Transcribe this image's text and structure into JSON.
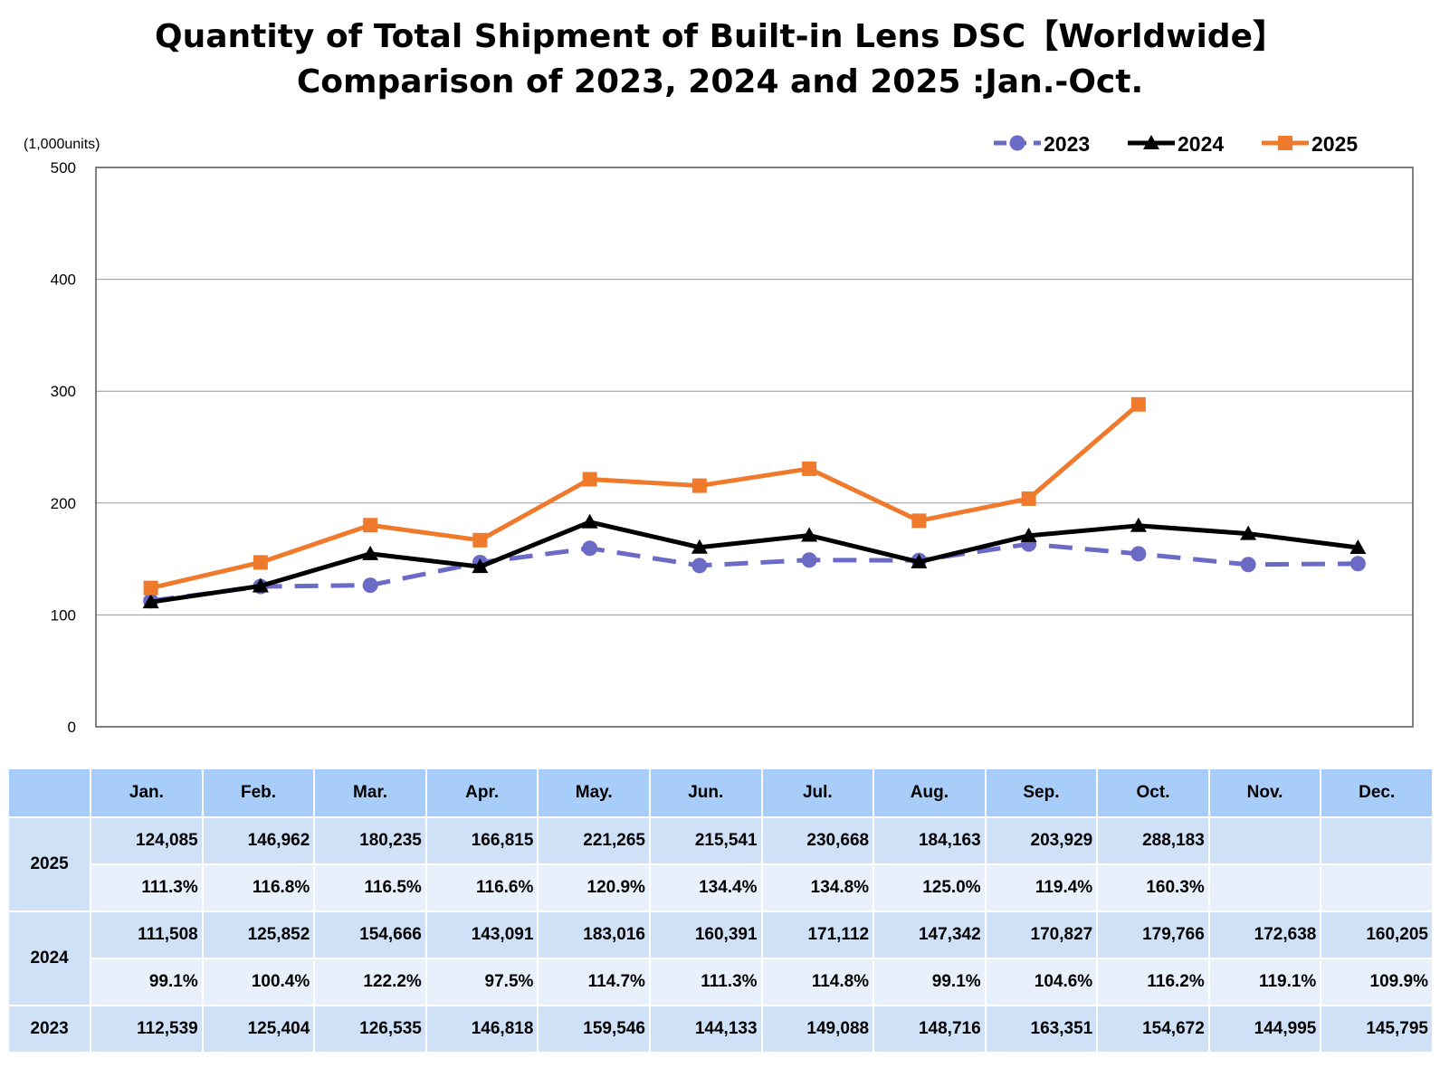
{
  "title_lines": [
    "Quantity of Total Shipment of Built-in Lens DSC【Worldwide】",
    "Comparison of 2023, 2024 and 2025 :Jan.-Oct."
  ],
  "chart_data": {
    "type": "line",
    "unit_label": "(1,000units)",
    "categories": [
      "Jan.",
      "Feb.",
      "Mar.",
      "Apr.",
      "May.",
      "Jun.",
      "Jul.",
      "Aug.",
      "Sep.",
      "Oct.",
      "Nov.",
      "Dec."
    ],
    "ylim": [
      0,
      500
    ],
    "yticks": [
      0,
      100,
      200,
      300,
      400,
      500
    ],
    "grid": true,
    "legend": "top-right",
    "series": [
      {
        "name": "2023",
        "color": "#6b6bc6",
        "marker": "circle",
        "dashed": true,
        "values": [
          112.539,
          125.404,
          126.535,
          146.818,
          159.546,
          144.133,
          149.088,
          148.716,
          163.351,
          154.672,
          144.995,
          145.795
        ]
      },
      {
        "name": "2024",
        "color": "#000000",
        "marker": "triangle",
        "dashed": false,
        "values": [
          111.508,
          125.852,
          154.666,
          143.091,
          183.016,
          160.391,
          171.112,
          147.342,
          170.827,
          179.766,
          172.638,
          160.205
        ]
      },
      {
        "name": "2025",
        "color": "#f07a2c",
        "marker": "square",
        "dashed": false,
        "values": [
          124.085,
          146.962,
          180.235,
          166.815,
          221.265,
          215.541,
          230.668,
          184.163,
          203.929,
          288.183,
          null,
          null
        ]
      }
    ]
  },
  "table": {
    "headers": [
      "Jan.",
      "Feb.",
      "Mar.",
      "Apr.",
      "May.",
      "Jun.",
      "Jul.",
      "Aug.",
      "Sep.",
      "Oct.",
      "Nov.",
      "Dec."
    ],
    "rows": [
      {
        "year": "2025",
        "values": [
          "124,085",
          "146,962",
          "180,235",
          "166,815",
          "221,265",
          "215,541",
          "230,668",
          "184,163",
          "203,929",
          "288,183",
          "",
          ""
        ],
        "ratios": [
          "111.3%",
          "116.8%",
          "116.5%",
          "116.6%",
          "120.9%",
          "134.4%",
          "134.8%",
          "125.0%",
          "119.4%",
          "160.3%",
          "",
          ""
        ]
      },
      {
        "year": "2024",
        "values": [
          "111,508",
          "125,852",
          "154,666",
          "143,091",
          "183,016",
          "160,391",
          "171,112",
          "147,342",
          "170,827",
          "179,766",
          "172,638",
          "160,205"
        ],
        "ratios": [
          "99.1%",
          "100.4%",
          "122.2%",
          "97.5%",
          "114.7%",
          "111.3%",
          "114.8%",
          "99.1%",
          "104.6%",
          "116.2%",
          "119.1%",
          "109.9%"
        ]
      },
      {
        "year": "2023",
        "values": [
          "112,539",
          "125,404",
          "126,535",
          "146,818",
          "159,546",
          "144,133",
          "149,088",
          "148,716",
          "163,351",
          "154,672",
          "144,995",
          "145,795"
        ]
      }
    ]
  }
}
